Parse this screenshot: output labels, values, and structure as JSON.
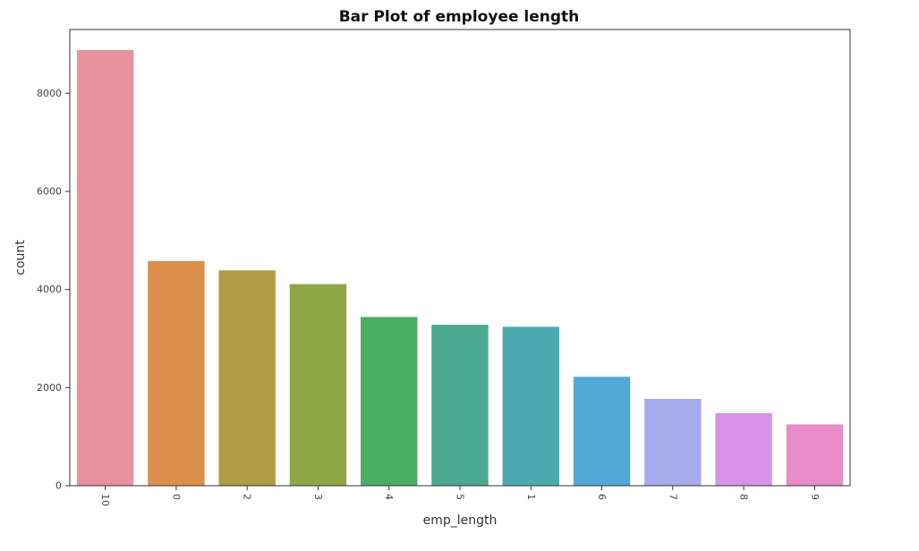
{
  "chart_data": {
    "type": "bar",
    "title": "Bar Plot of employee length",
    "xlabel": "emp_length",
    "ylabel": "count",
    "categories": [
      "10",
      "0",
      "2",
      "3",
      "4",
      "5",
      "1",
      "6",
      "7",
      "8",
      "9"
    ],
    "values": [
      8880,
      4580,
      4390,
      4110,
      3440,
      3280,
      3240,
      2220,
      1770,
      1480,
      1250
    ],
    "colors": [
      "#e8929f",
      "#db8f4c",
      "#b29b46",
      "#8fa646",
      "#49ad64",
      "#4aa98f",
      "#4aaab0",
      "#52a8d6",
      "#a7aaeb",
      "#d693e8",
      "#e78cc8"
    ],
    "yticks": [
      0,
      2000,
      4000,
      6000,
      8000
    ],
    "ylim": [
      0,
      9300
    ],
    "grid": false,
    "legend": "none",
    "xtick_rotation": "90"
  }
}
